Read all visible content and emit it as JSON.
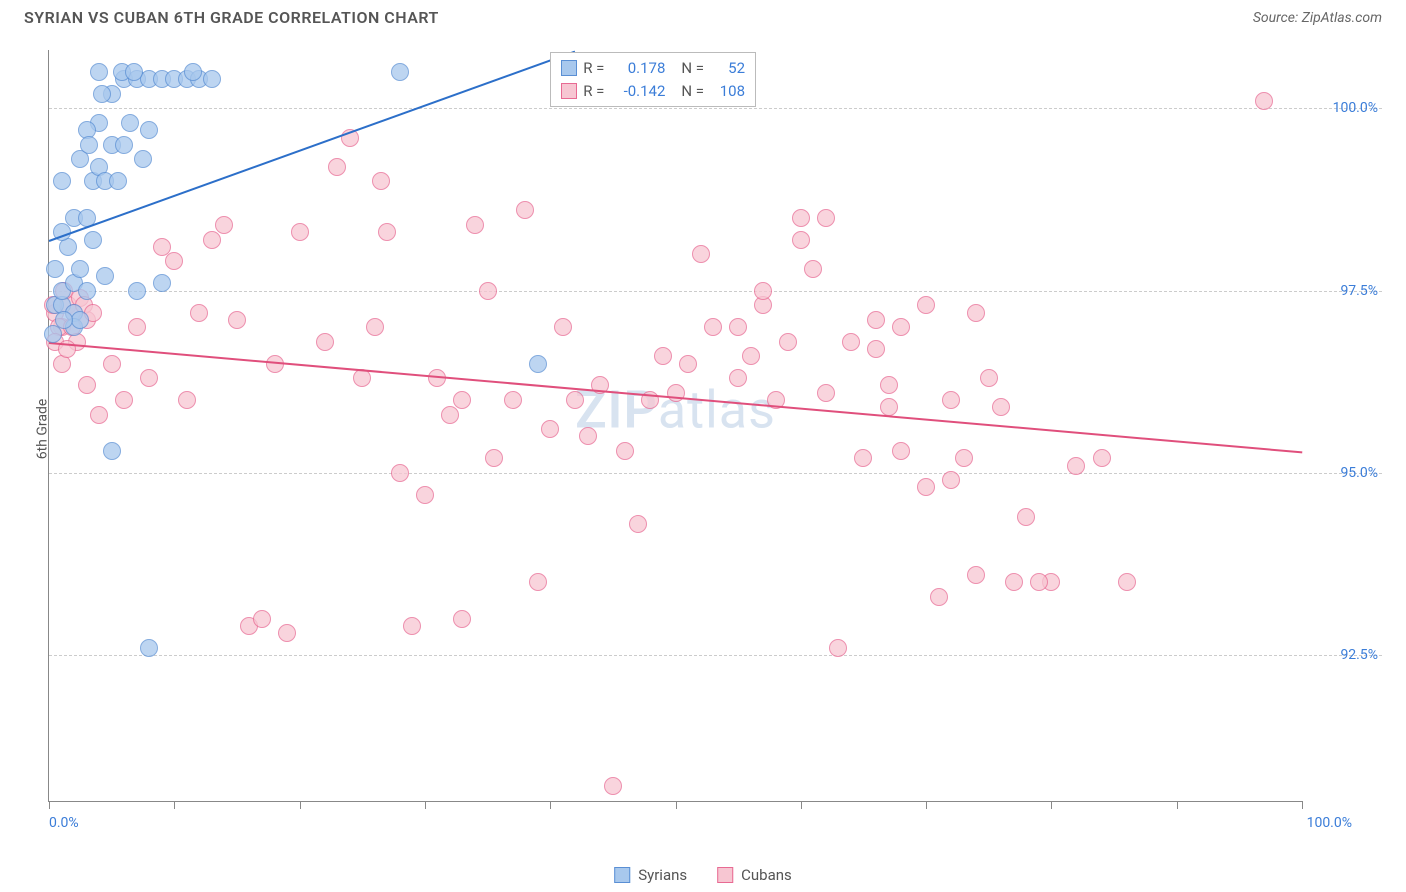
{
  "title": "SYRIAN VS CUBAN 6TH GRADE CORRELATION CHART",
  "source": "Source: ZipAtlas.com",
  "watermark_a": "ZIP",
  "watermark_b": "atlas",
  "y_axis_label": "6th Grade",
  "xlim": [
    0,
    100
  ],
  "ylim": [
    90.5,
    100.8
  ],
  "x_tick_positions": [
    0,
    10,
    20,
    30,
    40,
    50,
    60,
    70,
    80,
    90,
    100
  ],
  "x_tick_labels": {
    "start": "0.0%",
    "end": "100.0%"
  },
  "y_ticks": [
    {
      "v": 92.5,
      "label": "92.5%"
    },
    {
      "v": 95.0,
      "label": "95.0%"
    },
    {
      "v": 97.5,
      "label": "97.5%"
    },
    {
      "v": 100.0,
      "label": "100.0%"
    }
  ],
  "series": [
    {
      "key": "syrians",
      "name": "Syrians",
      "fill": "#a8c8ed",
      "stroke": "#5a8fd4",
      "line_color": "#2c6fc9",
      "r_label": "R =",
      "r_value": "0.178",
      "n_label": "N =",
      "n_value": "52",
      "trend": {
        "x1": 0,
        "y1": 98.2,
        "x2": 42,
        "y2": 100.8
      },
      "points": [
        [
          0.5,
          97.3
        ],
        [
          1,
          97.3
        ],
        [
          1,
          97.5
        ],
        [
          2,
          97.2
        ],
        [
          2,
          97.6
        ],
        [
          1.5,
          98.1
        ],
        [
          2.5,
          97.8
        ],
        [
          3,
          97.5
        ],
        [
          2,
          98.5
        ],
        [
          3,
          98.5
        ],
        [
          1,
          99.0
        ],
        [
          3.5,
          99.0
        ],
        [
          4,
          99.2
        ],
        [
          5,
          99.5
        ],
        [
          4.5,
          99.0
        ],
        [
          5.5,
          99.0
        ],
        [
          6,
          99.5
        ],
        [
          4,
          99.8
        ],
        [
          5,
          100.2
        ],
        [
          6,
          100.4
        ],
        [
          7,
          100.4
        ],
        [
          8,
          100.4
        ],
        [
          9,
          100.4
        ],
        [
          10,
          100.4
        ],
        [
          11,
          100.4
        ],
        [
          12,
          100.4
        ],
        [
          13,
          100.4
        ],
        [
          4,
          100.5
        ],
        [
          3,
          99.7
        ],
        [
          3.5,
          98.2
        ],
        [
          4.5,
          97.7
        ],
        [
          2,
          97.0
        ],
        [
          0.5,
          97.8
        ],
        [
          1,
          98.3
        ],
        [
          2.5,
          99.3
        ],
        [
          6.5,
          99.8
        ],
        [
          8,
          99.7
        ],
        [
          7.5,
          99.3
        ],
        [
          9,
          97.6
        ],
        [
          5,
          95.3
        ],
        [
          8,
          92.6
        ],
        [
          39,
          96.5
        ],
        [
          28,
          100.5
        ],
        [
          2.5,
          97.1
        ],
        [
          1.2,
          97.1
        ],
        [
          0.3,
          96.9
        ],
        [
          3.2,
          99.5
        ],
        [
          7,
          97.5
        ],
        [
          4.2,
          100.2
        ],
        [
          5.8,
          100.5
        ],
        [
          6.8,
          100.5
        ],
        [
          11.5,
          100.5
        ]
      ]
    },
    {
      "key": "cubans",
      "name": "Cubans",
      "fill": "#f7c6d2",
      "stroke": "#e86a93",
      "line_color": "#e04f7c",
      "r_label": "R =",
      "r_value": "-0.142",
      "n_label": "N =",
      "n_value": "108",
      "trend": {
        "x1": 0,
        "y1": 96.8,
        "x2": 100,
        "y2": 95.3
      },
      "points": [
        [
          0.5,
          97.2
        ],
        [
          1,
          97.0
        ],
        [
          1.5,
          97.3
        ],
        [
          2,
          97.2
        ],
        [
          2.5,
          97.4
        ],
        [
          1,
          96.5
        ],
        [
          3,
          97.1
        ],
        [
          1.2,
          97.5
        ],
        [
          0.8,
          97.0
        ],
        [
          0.3,
          97.3
        ],
        [
          1.8,
          97.0
        ],
        [
          2.2,
          96.8
        ],
        [
          6,
          96.0
        ],
        [
          4,
          95.8
        ],
        [
          3,
          96.2
        ],
        [
          9,
          98.1
        ],
        [
          10,
          97.9
        ],
        [
          11,
          96.0
        ],
        [
          13,
          98.2
        ],
        [
          14,
          98.4
        ],
        [
          15,
          97.1
        ],
        [
          16,
          92.9
        ],
        [
          18,
          96.5
        ],
        [
          20,
          98.3
        ],
        [
          22,
          96.8
        ],
        [
          23,
          99.2
        ],
        [
          24,
          99.6
        ],
        [
          25,
          96.3
        ],
        [
          26,
          97.0
        ],
        [
          26.5,
          99.0
        ],
        [
          27,
          98.3
        ],
        [
          28,
          95.0
        ],
        [
          29,
          92.9
        ],
        [
          30,
          94.7
        ],
        [
          31,
          96.3
        ],
        [
          32,
          95.8
        ],
        [
          33,
          96.0
        ],
        [
          34,
          98.4
        ],
        [
          35,
          97.5
        ],
        [
          35.5,
          95.2
        ],
        [
          37,
          96.0
        ],
        [
          38,
          98.6
        ],
        [
          39,
          93.5
        ],
        [
          40,
          95.6
        ],
        [
          41,
          97.0
        ],
        [
          42,
          96.0
        ],
        [
          43,
          95.5
        ],
        [
          44,
          96.2
        ],
        [
          45,
          90.7
        ],
        [
          46,
          95.3
        ],
        [
          47,
          94.3
        ],
        [
          49,
          96.6
        ],
        [
          50,
          96.1
        ],
        [
          51,
          96.5
        ],
        [
          52,
          98.0
        ],
        [
          53,
          97.0
        ],
        [
          55,
          97.0
        ],
        [
          56,
          96.6
        ],
        [
          57,
          97.3
        ],
        [
          59,
          96.8
        ],
        [
          60,
          98.2
        ],
        [
          62,
          96.1
        ],
        [
          63,
          92.6
        ],
        [
          65,
          95.2
        ],
        [
          66,
          97.1
        ],
        [
          67,
          95.9
        ],
        [
          68,
          95.3
        ],
        [
          70,
          94.8
        ],
        [
          71,
          93.3
        ],
        [
          72,
          96.0
        ],
        [
          73,
          95.2
        ],
        [
          74,
          93.6
        ],
        [
          75,
          96.3
        ],
        [
          76,
          95.9
        ],
        [
          78,
          94.4
        ],
        [
          80,
          93.5
        ],
        [
          82,
          95.1
        ],
        [
          84,
          95.2
        ],
        [
          86,
          93.5
        ],
        [
          97,
          100.1
        ],
        [
          17,
          93.0
        ],
        [
          19,
          92.8
        ],
        [
          33,
          93.0
        ],
        [
          57,
          97.5
        ],
        [
          60,
          98.5
        ],
        [
          62,
          98.5
        ],
        [
          66,
          96.7
        ],
        [
          72,
          94.9
        ],
        [
          0.5,
          96.8
        ],
        [
          1.4,
          96.7
        ],
        [
          2.8,
          97.3
        ],
        [
          3.5,
          97.2
        ],
        [
          7,
          97.0
        ],
        [
          8,
          96.3
        ],
        [
          12,
          97.2
        ],
        [
          5,
          96.5
        ],
        [
          48,
          96.0
        ],
        [
          55,
          96.3
        ],
        [
          58,
          96.0
        ],
        [
          61,
          97.8
        ],
        [
          68,
          97.0
        ],
        [
          70,
          97.3
        ],
        [
          64,
          96.8
        ],
        [
          67,
          96.2
        ],
        [
          74,
          97.2
        ],
        [
          77,
          93.5
        ],
        [
          79,
          93.5
        ]
      ]
    }
  ],
  "marker_radius": 9,
  "marker_stroke_width": 1.5,
  "chart_bg": "#ffffff",
  "grid_color": "#cccccc",
  "axis_color": "#888888",
  "text_color": "#555555",
  "tick_color": "#3b7dd8"
}
